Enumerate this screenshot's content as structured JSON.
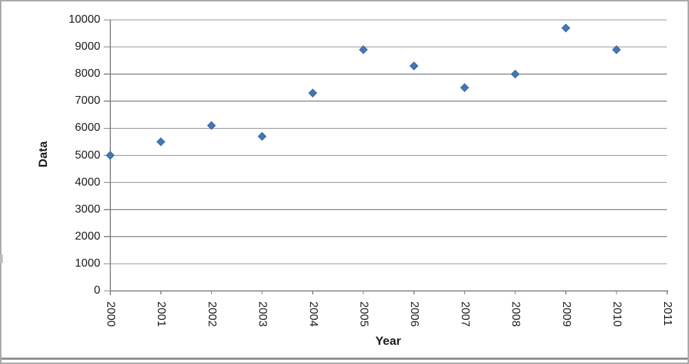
{
  "chart_data": {
    "type": "scatter",
    "title": "",
    "xlabel": "Year",
    "ylabel": "Data",
    "x": [
      2000,
      2001,
      2002,
      2003,
      2004,
      2005,
      2006,
      2007,
      2008,
      2009,
      2010
    ],
    "values": [
      5000,
      5500,
      6100,
      5700,
      7300,
      8900,
      8300,
      7500,
      8000,
      9700,
      8900
    ],
    "series_name": "Data",
    "xtick_labels": [
      "2000",
      "2001",
      "2002",
      "2003",
      "2004",
      "2005",
      "2006",
      "2007",
      "2008",
      "2009",
      "2010",
      "2011"
    ],
    "ytick_labels": [
      "0",
      "1000",
      "2000",
      "3000",
      "4000",
      "5000",
      "6000",
      "7000",
      "8000",
      "9000",
      "10000"
    ],
    "ylim": [
      0,
      10000
    ],
    "ytick_step": 1000,
    "grid": true,
    "legend": false,
    "marker": {
      "shape": "diamond",
      "size": 11,
      "color": "#4677B4",
      "edge_color": "#3A629E"
    },
    "grid_color": "#909090",
    "axis_color": "#7f7f7f",
    "text_color": "#1a1a1a",
    "background_color": "#ffffff",
    "frame_border_color": "#a8a8a8"
  }
}
